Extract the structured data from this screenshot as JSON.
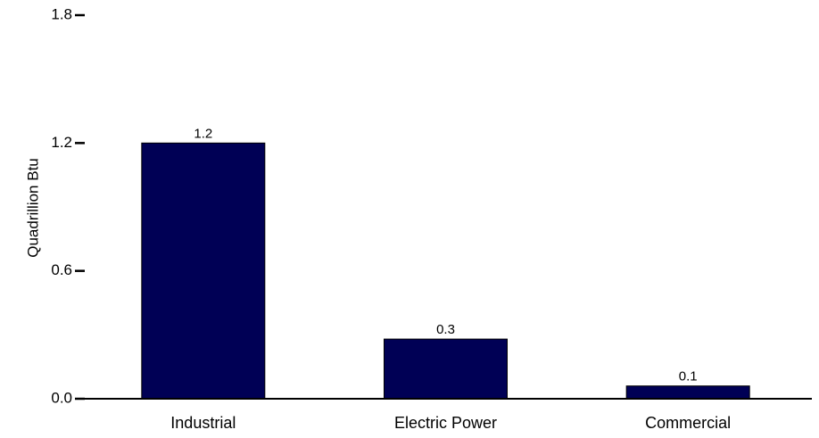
{
  "chart_data": {
    "type": "bar",
    "title": "",
    "xlabel": "",
    "ylabel": "Quadrillion Btu",
    "categories": [
      "Industrial",
      "Electric Power",
      "Commercial"
    ],
    "values": [
      1.2,
      0.28,
      0.06
    ],
    "data_labels": [
      "1.2",
      "0.3",
      "0.1"
    ],
    "ylim": [
      0,
      1.8
    ],
    "yticks": [
      0.0,
      0.6,
      1.2,
      1.8
    ],
    "ytick_labels": [
      "0.0",
      "0.6",
      "1.2",
      "1.8"
    ],
    "bar_color": "#000055",
    "grid": false,
    "legend": "none"
  }
}
